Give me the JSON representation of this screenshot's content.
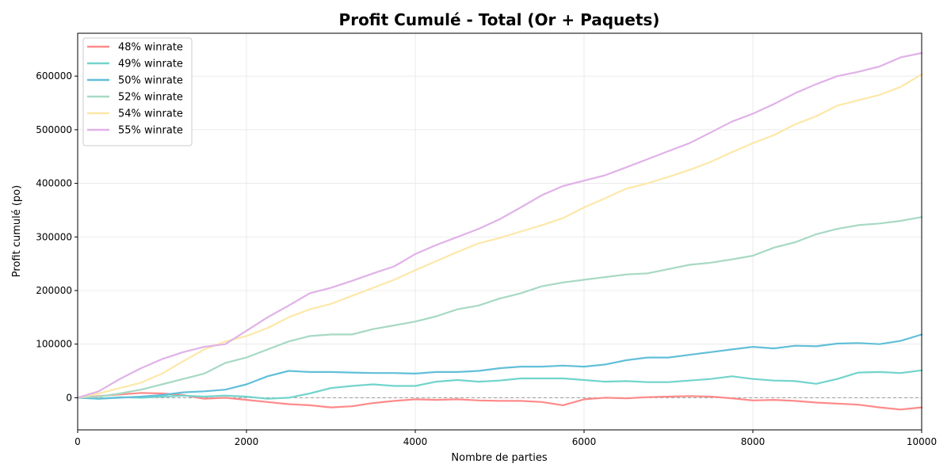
{
  "chart_data": {
    "type": "line",
    "title": "Profit Cumulé - Total (Or + Paquets)",
    "xlabel": "Nombre de parties",
    "ylabel": "Profit cumulé (po)",
    "xlim": [
      0,
      10000
    ],
    "ylim": [
      -60000,
      680000
    ],
    "xticks": [
      0,
      2000,
      4000,
      6000,
      8000,
      10000
    ],
    "yticks": [
      0,
      100000,
      200000,
      300000,
      400000,
      500000,
      600000
    ],
    "grid": true,
    "legend_position": "top-left",
    "baseline": 0,
    "x": [
      0,
      250,
      500,
      750,
      1000,
      1250,
      1500,
      1750,
      2000,
      2250,
      2500,
      2750,
      3000,
      3250,
      3500,
      3750,
      4000,
      4250,
      4500,
      4750,
      5000,
      5250,
      5500,
      5750,
      6000,
      6250,
      6500,
      6750,
      7000,
      7250,
      7500,
      7750,
      8000,
      8250,
      8500,
      8750,
      9000,
      9250,
      9500,
      9750,
      10000
    ],
    "series": [
      {
        "name": "48% winrate",
        "color": "#FF8A8A",
        "values": [
          0,
          3000,
          6000,
          9000,
          8000,
          5000,
          -2000,
          0,
          -4000,
          -8000,
          -12000,
          -14000,
          -18000,
          -16000,
          -10000,
          -6000,
          -3000,
          -4000,
          -3000,
          -5000,
          -6000,
          -6000,
          -8000,
          -14000,
          -3000,
          0,
          -1000,
          1000,
          2000,
          3000,
          2000,
          -1000,
          -5000,
          -4000,
          -6000,
          -9000,
          -11000,
          -13000,
          -18000,
          -22000,
          -18000
        ]
      },
      {
        "name": "49% winrate",
        "color": "#72D4CC",
        "values": [
          0,
          -2000,
          1000,
          0,
          2000,
          4000,
          2000,
          4000,
          2000,
          -2000,
          0,
          8000,
          18000,
          22000,
          25000,
          22000,
          22000,
          30000,
          33000,
          30000,
          32000,
          36000,
          36000,
          36000,
          33000,
          30000,
          31000,
          29000,
          29000,
          32000,
          35000,
          40000,
          35000,
          32000,
          31000,
          26000,
          35000,
          47000,
          48000,
          46000,
          51000
        ]
      },
      {
        "name": "50% winrate",
        "color": "#62BFD8",
        "values": [
          0,
          -2000,
          0,
          2000,
          5000,
          10000,
          12000,
          15000,
          25000,
          40000,
          50000,
          48000,
          48000,
          47000,
          46000,
          46000,
          45000,
          48000,
          48000,
          50000,
          55000,
          58000,
          58000,
          60000,
          58000,
          62000,
          70000,
          75000,
          75000,
          80000,
          85000,
          90000,
          95000,
          92000,
          97000,
          96000,
          101000,
          102000,
          100000,
          106000,
          118000
        ]
      },
      {
        "name": "52% winrate",
        "color": "#A7D9C3",
        "values": [
          0,
          2000,
          8000,
          15000,
          25000,
          35000,
          45000,
          65000,
          75000,
          90000,
          105000,
          115000,
          118000,
          118000,
          128000,
          135000,
          142000,
          152000,
          165000,
          172000,
          185000,
          195000,
          208000,
          215000,
          220000,
          225000,
          230000,
          232000,
          240000,
          248000,
          252000,
          258000,
          265000,
          280000,
          290000,
          305000,
          315000,
          322000,
          325000,
          330000,
          337000
        ]
      },
      {
        "name": "54% winrate",
        "color": "#FCE8A8",
        "values": [
          0,
          8000,
          18000,
          28000,
          45000,
          68000,
          90000,
          105000,
          115000,
          130000,
          150000,
          165000,
          175000,
          190000,
          205000,
          220000,
          238000,
          255000,
          272000,
          288000,
          298000,
          310000,
          322000,
          335000,
          355000,
          372000,
          390000,
          400000,
          412000,
          425000,
          440000,
          458000,
          475000,
          490000,
          510000,
          525000,
          545000,
          555000,
          565000,
          580000,
          603000
        ]
      },
      {
        "name": "55% winrate",
        "color": "#E0B2E8",
        "values": [
          0,
          12000,
          35000,
          55000,
          72000,
          85000,
          95000,
          100000,
          125000,
          150000,
          172000,
          195000,
          205000,
          218000,
          232000,
          245000,
          268000,
          285000,
          300000,
          315000,
          333000,
          355000,
          378000,
          395000,
          405000,
          415000,
          430000,
          445000,
          460000,
          475000,
          495000,
          515000,
          530000,
          548000,
          568000,
          585000,
          600000,
          608000,
          618000,
          635000,
          643000
        ]
      }
    ]
  }
}
